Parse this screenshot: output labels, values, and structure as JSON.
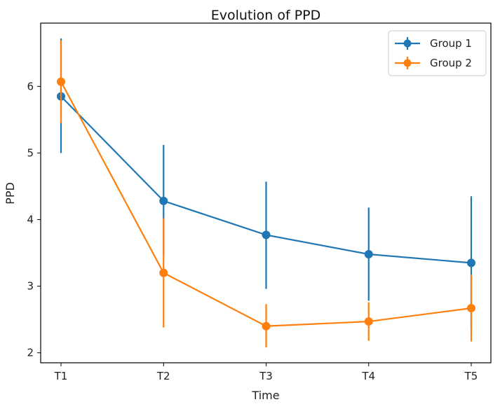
{
  "chart_data": {
    "type": "line",
    "title": "Evolution of PPD",
    "xlabel": "Time",
    "ylabel": "PPD",
    "categories": [
      "T1",
      "T2",
      "T3",
      "T4",
      "T5"
    ],
    "ylim": [
      1.85,
      6.95
    ],
    "yticks": [
      2,
      3,
      4,
      5,
      6
    ],
    "legend_position": "upper right",
    "grid": false,
    "series": [
      {
        "name": "Group 1",
        "color": "#1f77b4",
        "values": [
          5.85,
          4.28,
          3.77,
          3.48,
          3.35
        ],
        "error_low": [
          5.0,
          3.44,
          2.96,
          2.78,
          2.36
        ],
        "error_high": [
          6.72,
          5.12,
          4.57,
          4.18,
          4.35
        ]
      },
      {
        "name": "Group 2",
        "color": "#ff7f0e",
        "values": [
          6.07,
          3.2,
          2.4,
          2.47,
          2.67
        ],
        "error_low": [
          5.45,
          2.38,
          2.08,
          2.18,
          2.17
        ],
        "error_high": [
          6.69,
          4.02,
          2.73,
          2.76,
          3.17
        ]
      }
    ]
  }
}
